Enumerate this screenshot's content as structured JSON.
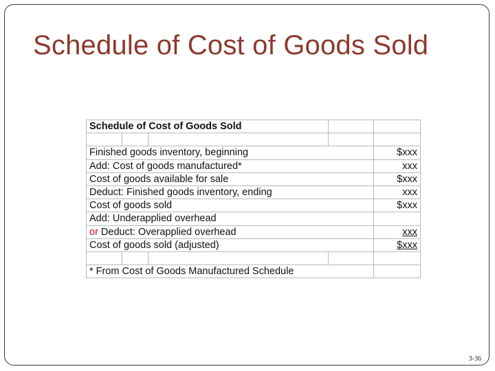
{
  "slide": {
    "title": "Schedule of Cost of Goods Sold",
    "page_number": "3-36"
  },
  "schedule": {
    "header": "Schedule of Cost of Goods Sold",
    "rows": [
      {
        "label": "Finished goods inventory, beginning",
        "amount": "$xxx"
      },
      {
        "label": "Add: Cost of goods manufactured*",
        "amount": "xxx"
      },
      {
        "label": "Cost of goods available for sale",
        "amount": "$xxx"
      },
      {
        "label": "Deduct:  Finished goods inventory, ending",
        "amount": "xxx"
      },
      {
        "label": "Cost of goods sold",
        "amount": "$xxx"
      },
      {
        "label": "Add: Underapplied overhead",
        "amount": ""
      },
      {
        "label_prefix": "or",
        "label": " Deduct: Overapplied overhead",
        "amount": "xxx"
      },
      {
        "label": "Cost of goods sold (adjusted)",
        "amount": "$xxx"
      }
    ],
    "footnote": "* From Cost of Goods Manufactured Schedule"
  },
  "colors": {
    "title": "#8b3a2e",
    "or_word": "#d01010"
  }
}
